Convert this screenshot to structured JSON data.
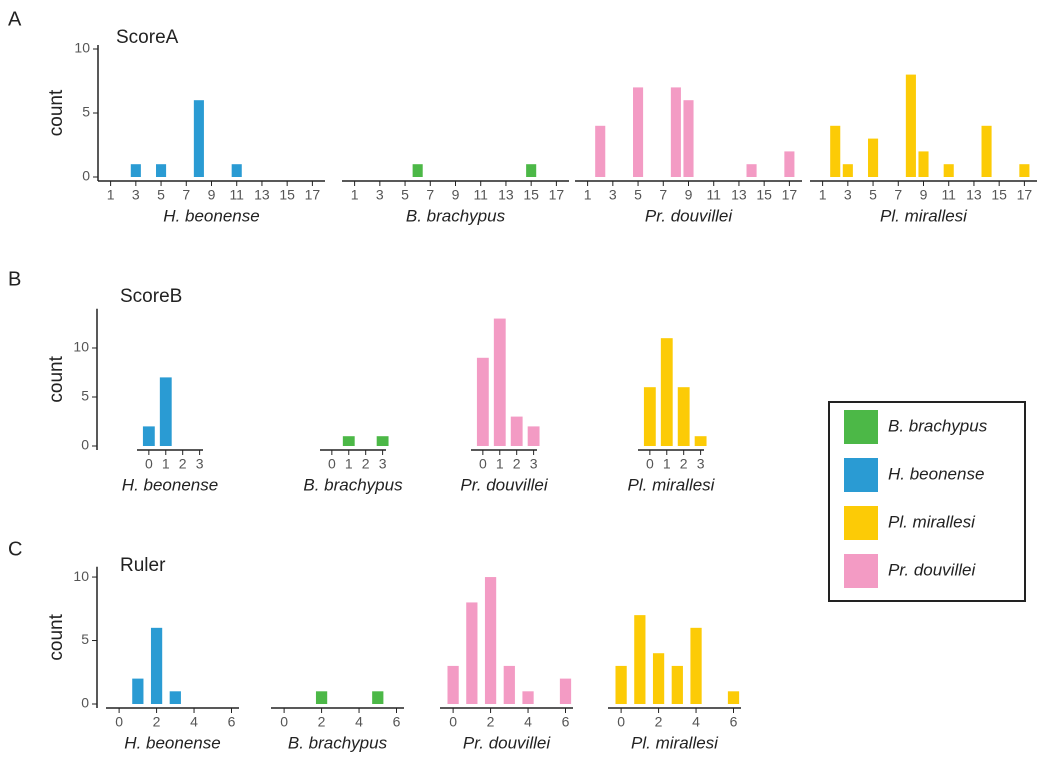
{
  "chart_data": [
    {
      "type": "bar",
      "panel": "A",
      "title": "ScoreA",
      "y_label": "count",
      "xlim": [
        0,
        18
      ],
      "xticks": [
        1,
        3,
        5,
        7,
        9,
        11,
        13,
        15,
        17
      ],
      "ylim": [
        0,
        10
      ],
      "yticks": [
        0,
        5,
        10
      ],
      "series": [
        {
          "name": "H. beonense",
          "color": "#2a9bd3",
          "x": [
            3,
            5,
            8,
            11
          ],
          "values": [
            1,
            1,
            6,
            1
          ]
        },
        {
          "name": "B. brachypus",
          "color": "#4cb847",
          "x": [
            6,
            15
          ],
          "values": [
            1,
            1
          ]
        },
        {
          "name": "Pr. douvillei",
          "color": "#f39bc4",
          "x": [
            2,
            5,
            8,
            9,
            14,
            17
          ],
          "values": [
            4,
            7,
            7,
            6,
            1,
            2
          ]
        },
        {
          "name": "Pl. mirallesi",
          "color": "#fccb06",
          "x": [
            2,
            3,
            5,
            8,
            9,
            11,
            14,
            17
          ],
          "values": [
            4,
            1,
            3,
            8,
            2,
            1,
            4,
            1
          ]
        }
      ]
    },
    {
      "type": "bar",
      "panel": "B",
      "title": "ScoreB",
      "y_label": "count",
      "xlim": [
        -0.7,
        3.2
      ],
      "xticks": [
        0,
        1,
        2,
        3
      ],
      "ylim": [
        0,
        13.6
      ],
      "yticks": [
        0,
        5,
        10
      ],
      "series": [
        {
          "name": "H. beonense",
          "color": "#2a9bd3",
          "x": [
            0,
            1
          ],
          "values": [
            2,
            7
          ]
        },
        {
          "name": "B. brachypus",
          "color": "#4cb847",
          "x": [
            1,
            3
          ],
          "values": [
            1,
            1
          ]
        },
        {
          "name": "Pr. douvillei",
          "color": "#f39bc4",
          "x": [
            0,
            1,
            2,
            3
          ],
          "values": [
            9,
            13,
            3,
            2
          ]
        },
        {
          "name": "Pl. mirallesi",
          "color": "#fccb06",
          "x": [
            0,
            1,
            2,
            3
          ],
          "values": [
            6,
            11,
            6,
            1
          ]
        }
      ]
    },
    {
      "type": "bar",
      "panel": "C",
      "title": "Ruler",
      "y_label": "count",
      "xlim": [
        -0.7,
        6.4
      ],
      "xticks": [
        0,
        2,
        4,
        6
      ],
      "ylim": [
        0,
        10.5
      ],
      "yticks": [
        0,
        5,
        10
      ],
      "series": [
        {
          "name": "H. beonense",
          "color": "#2a9bd3",
          "x": [
            1,
            2,
            3
          ],
          "values": [
            2,
            6,
            1
          ]
        },
        {
          "name": "B. brachypus",
          "color": "#4cb847",
          "x": [
            2,
            5
          ],
          "values": [
            1,
            1
          ]
        },
        {
          "name": "Pr. douvillei",
          "color": "#f39bc4",
          "x": [
            0,
            1,
            2,
            3,
            4,
            6
          ],
          "values": [
            3,
            8,
            10,
            3,
            1,
            2
          ]
        },
        {
          "name": "Pl. mirallesi",
          "color": "#fccb06",
          "x": [
            0,
            1,
            2,
            3,
            4,
            6
          ],
          "values": [
            3,
            7,
            4,
            3,
            6,
            1
          ]
        }
      ]
    }
  ],
  "legend": [
    {
      "name": "B. brachypus",
      "color": "#4cb847"
    },
    {
      "name": "H. beonense",
      "color": "#2a9bd3"
    },
    {
      "name": "Pl. mirallesi",
      "color": "#fccb06"
    },
    {
      "name": "Pr. douvillei",
      "color": "#f39bc4"
    }
  ]
}
